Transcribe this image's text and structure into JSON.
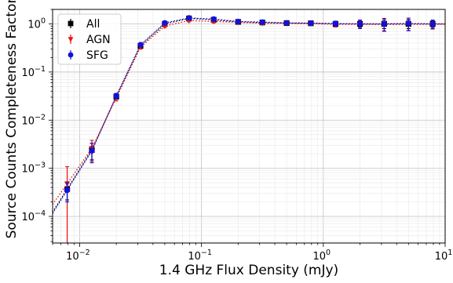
{
  "chart_data": {
    "type": "scatter",
    "xlabel": "1.4 GHz Flux Density (mJy)",
    "ylabel": "Source Counts Completeness Factor",
    "x_scale": "log",
    "y_scale": "log",
    "xlim": [
      0.006,
      10
    ],
    "ylim": [
      2.8e-05,
      2.0
    ],
    "grid": true,
    "legend_position": "top-left",
    "x_major_ticks": [
      0.01,
      0.1,
      1,
      10
    ],
    "x_tick_labels": [
      {
        "base": "10",
        "exp": "−2"
      },
      {
        "base": "10",
        "exp": "−1"
      },
      {
        "base": "10",
        "exp": "0"
      },
      {
        "base": "10",
        "exp": "1"
      }
    ],
    "y_major_ticks": [
      0.0001,
      0.001,
      0.01,
      0.1,
      1
    ],
    "y_tick_labels": [
      {
        "base": "10",
        "exp": "−4"
      },
      {
        "base": "10",
        "exp": "−3"
      },
      {
        "base": "10",
        "exp": "−2"
      },
      {
        "base": "10",
        "exp": "−1"
      },
      {
        "base": "10",
        "exp": "0"
      }
    ],
    "series": [
      {
        "name": "All",
        "color": "#000000",
        "marker": "square",
        "x": [
          0.0079,
          0.0126,
          0.02,
          0.0316,
          0.05,
          0.079,
          0.126,
          0.2,
          0.316,
          0.5,
          0.79,
          1.26,
          2.0,
          3.16,
          5.0,
          7.9
        ],
        "y": [
          0.00037,
          0.0024,
          0.031,
          0.35,
          1.0,
          1.3,
          1.22,
          1.1,
          1.07,
          1.04,
          1.03,
          1.0,
          1.0,
          1.0,
          1.0,
          1.0
        ],
        "err": [
          0.00015,
          0.0009,
          0.004,
          0.03,
          0.06,
          0.07,
          0.07,
          0.06,
          0.06,
          0.06,
          0.07,
          0.1,
          0.15,
          0.2,
          0.2,
          0.15
        ]
      },
      {
        "name": "AGN",
        "color": "#ee1111",
        "marker": "triangle-down",
        "x": [
          0.0079,
          0.0126,
          0.02,
          0.0316,
          0.05,
          0.079,
          0.126,
          0.2,
          0.316,
          0.5,
          0.79,
          1.26,
          2.0,
          3.16,
          5.0,
          7.9
        ],
        "y": [
          0.00048,
          0.0026,
          0.029,
          0.33,
          0.9,
          1.17,
          1.12,
          1.08,
          1.03,
          1.02,
          1.01,
          0.98,
          0.98,
          0.97,
          0.98,
          0.98
        ],
        "err": [
          0.0006,
          0.0012,
          0.004,
          0.03,
          0.06,
          0.07,
          0.07,
          0.06,
          0.06,
          0.06,
          0.07,
          0.12,
          0.18,
          0.25,
          0.25,
          0.2
        ]
      },
      {
        "name": "SFG",
        "color": "#1111dd",
        "marker": "circle",
        "x": [
          0.0079,
          0.0126,
          0.02,
          0.0316,
          0.05,
          0.079,
          0.126,
          0.2,
          0.316,
          0.5,
          0.79,
          1.26,
          2.0,
          3.16,
          5.0,
          7.9
        ],
        "y": [
          0.00035,
          0.0023,
          0.032,
          0.37,
          1.05,
          1.33,
          1.26,
          1.12,
          1.09,
          1.05,
          1.04,
          1.02,
          1.0,
          1.0,
          1.02,
          1.0
        ],
        "err": [
          0.00015,
          0.001,
          0.004,
          0.03,
          0.06,
          0.07,
          0.07,
          0.06,
          0.06,
          0.06,
          0.07,
          0.12,
          0.2,
          0.3,
          0.3,
          0.2
        ]
      }
    ]
  }
}
